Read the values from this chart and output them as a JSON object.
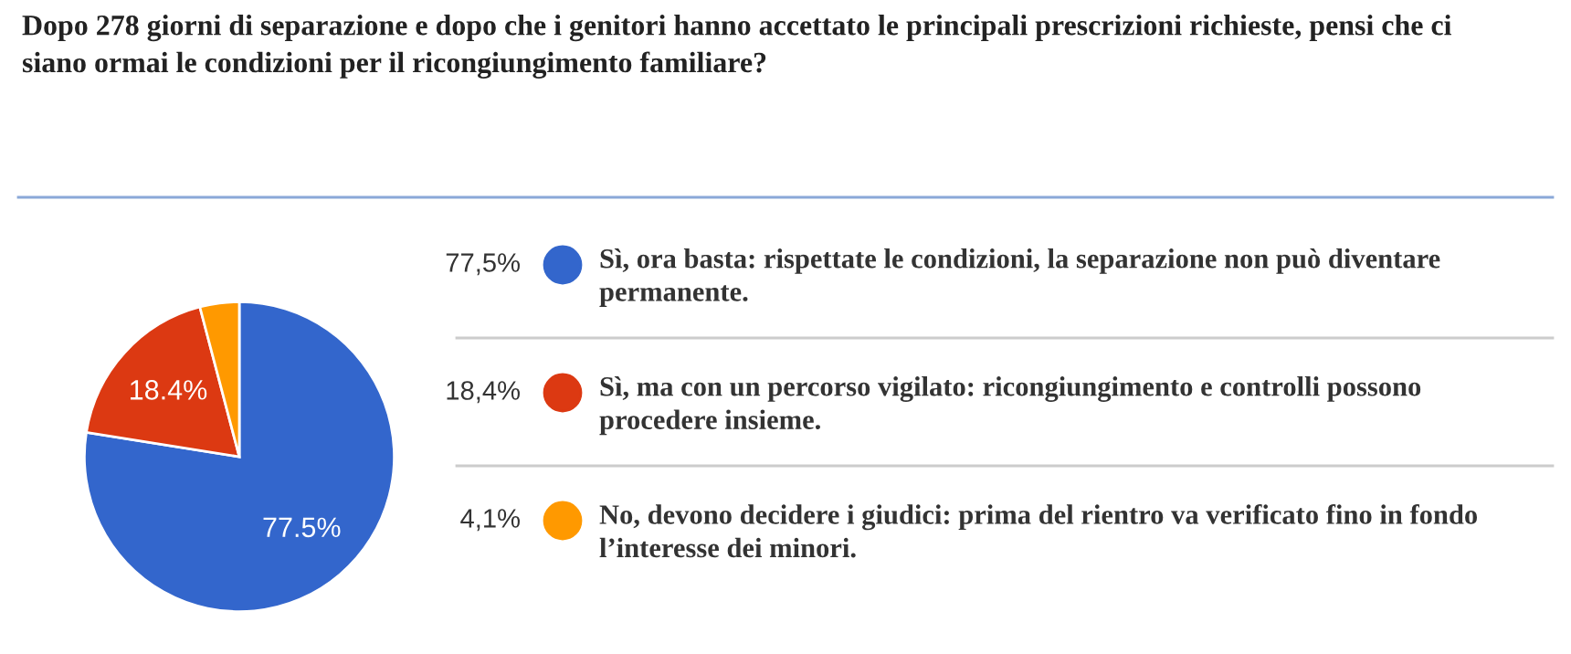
{
  "chart_data": {
    "type": "pie",
    "title": "Dopo 278 giorni di separazione e dopo che i genitori hanno accettato le principali prescrizioni richieste, pensi che ci siano ormai le condizioni per il ricongiungimento familiare?",
    "categories": [
      "Sì, ora basta: rispettate le condizioni, la separazione non può diventare permanente.",
      "Sì, ma con un percorso vigilato: ricongiungimento e controlli possono procedere insieme.",
      "No, devono decidere i giudici: prima del rientro va verificato fino in fondo l’interesse dei minori."
    ],
    "values": [
      77.5,
      18.4,
      4.1
    ],
    "colors": [
      "#3366cc",
      "#dc3912",
      "#ff9900"
    ],
    "value_labels": [
      "77.5%",
      "18.4%",
      null
    ],
    "annotations": [
      "77,5%",
      "18,4%",
      "4,1%"
    ],
    "legend": "right"
  }
}
